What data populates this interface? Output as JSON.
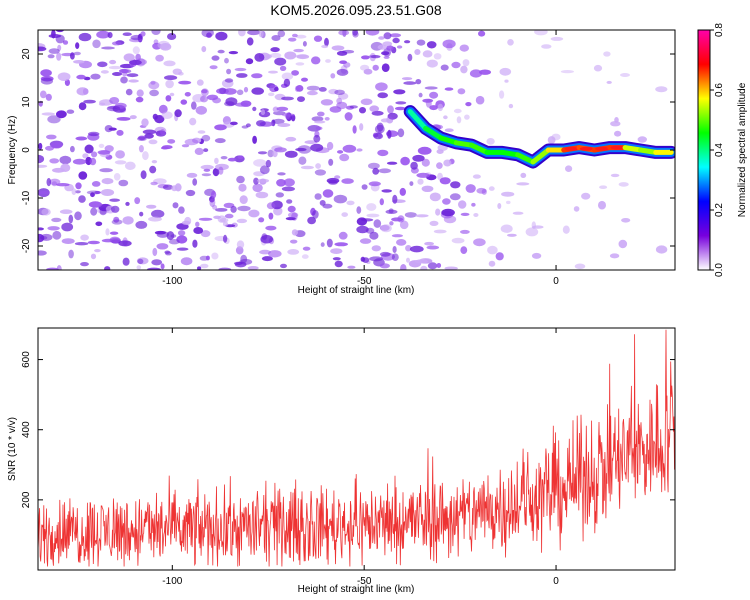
{
  "chart_data": [
    {
      "type": "heatmap",
      "title": "KOM5.2026.095.23.51.G08",
      "xlabel": "Height of straight line (km)",
      "ylabel": "Frequency (Hz)",
      "xlim": [
        -135,
        31
      ],
      "ylim": [
        -25,
        25
      ],
      "xticks": [
        -100,
        -50,
        0
      ],
      "yticks": [
        20,
        10,
        0,
        -10,
        -20
      ],
      "colorbar": {
        "label": "Normalized spectral amplitude",
        "range": [
          0.0,
          0.8
        ],
        "ticks": [
          "0.0",
          "0.2",
          "0.4",
          "0.6",
          "0.8"
        ],
        "stops": [
          "#ffffff",
          "#7700dd",
          "#0000ff",
          "#00ffff",
          "#00ff00",
          "#ffff00",
          "#ff0000",
          "#ff00aa"
        ]
      },
      "noise_amplitude_level": 0.12,
      "ridge": {
        "x": [
          -38,
          -34,
          -30,
          -26,
          -22,
          -18,
          -14,
          -10,
          -6,
          -2,
          2,
          6,
          10,
          14,
          18,
          22,
          26,
          30
        ],
        "y": [
          8,
          4.5,
          2.5,
          1.5,
          1.0,
          -0.5,
          -0.5,
          -1.0,
          -2.5,
          0,
          0,
          0.5,
          0,
          0.5,
          0.5,
          0,
          -0.5,
          -0.5
        ],
        "amplitude": [
          0.35,
          0.42,
          0.45,
          0.48,
          0.5,
          0.46,
          0.45,
          0.46,
          0.5,
          0.55,
          0.62,
          0.7,
          0.6,
          0.72,
          0.6,
          0.5,
          0.55,
          0.6
        ]
      }
    },
    {
      "type": "line",
      "xlabel": "Height of straight line (km)",
      "ylabel": "SNR (10 * v/v)",
      "xlim": [
        -135,
        31
      ],
      "ylim": [
        0,
        690
      ],
      "xticks": [
        -100,
        -50,
        0
      ],
      "yticks": [
        200,
        400,
        600
      ],
      "series": [
        {
          "name": "SNR",
          "color": "#ee3333",
          "x_range": [
            -135,
            31
          ],
          "samples": 1200,
          "trend_x": [
            -135,
            -100,
            -60,
            -25,
            0,
            20,
            31
          ],
          "trend_mean": [
            105,
            115,
            125,
            150,
            225,
            330,
            385
          ],
          "trend_spread": [
            85,
            95,
            95,
            105,
            130,
            150,
            150
          ],
          "max_value": 685
        }
      ]
    }
  ]
}
